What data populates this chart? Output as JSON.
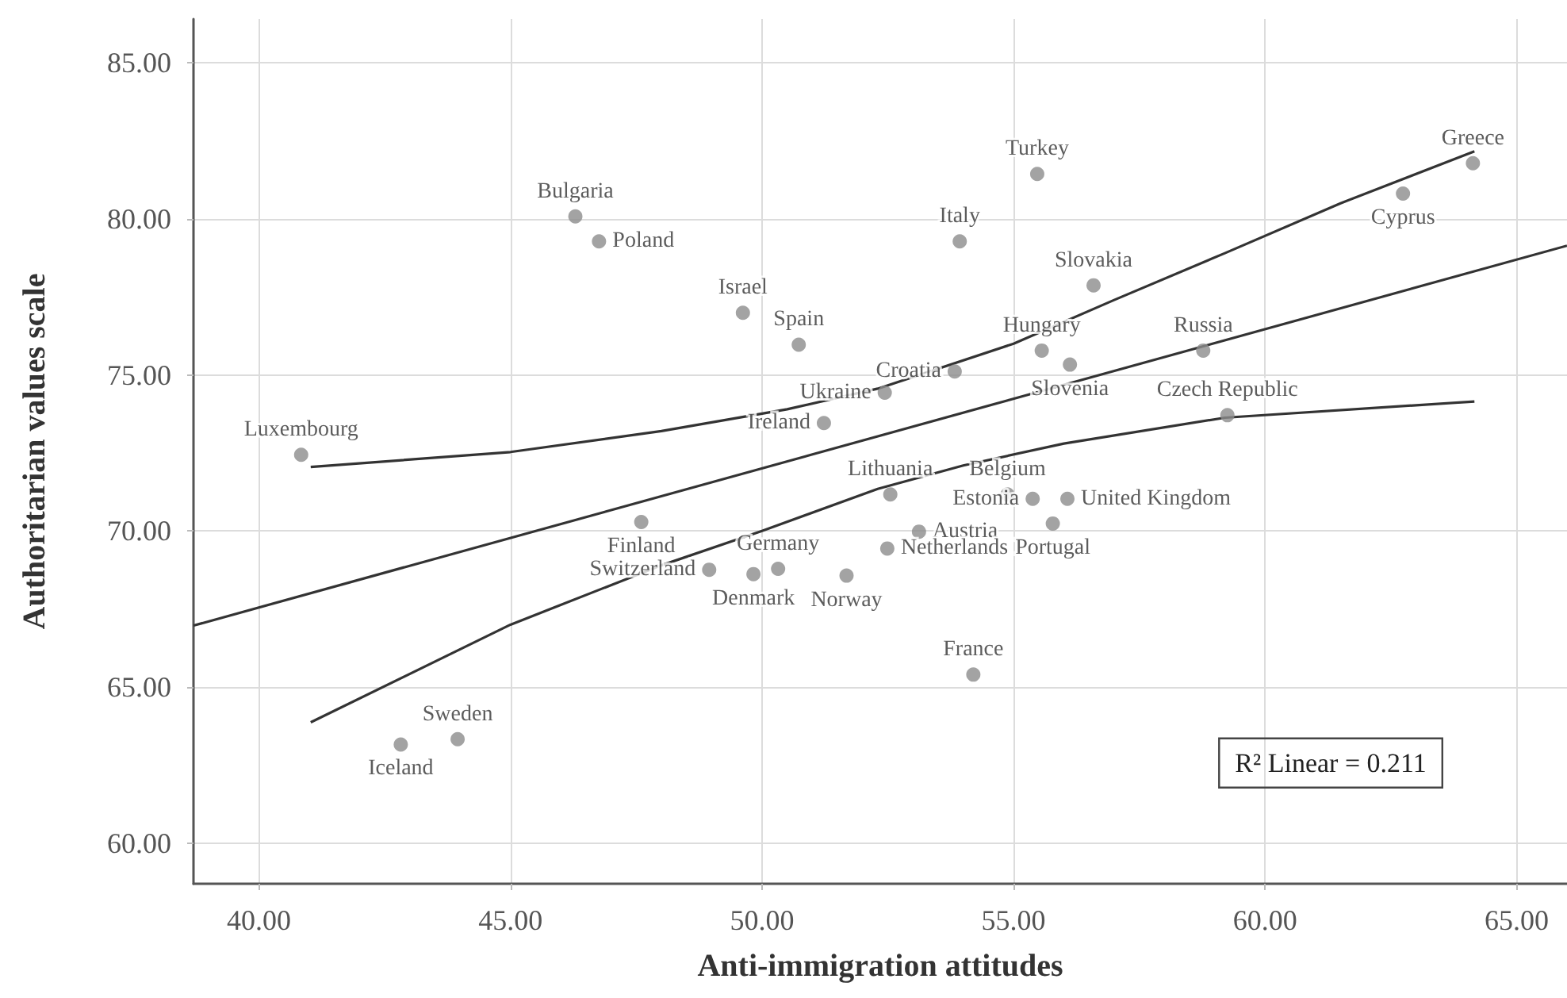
{
  "chart_data": {
    "type": "scatter",
    "xlabel": "Anti-immigration attitudes",
    "ylabel": "Authoritarian values scale",
    "xlim": [
      38.7,
      66
    ],
    "ylim": [
      58.7,
      86.4
    ],
    "xticks": [
      {
        "value": 40,
        "label": "40.00"
      },
      {
        "value": 45,
        "label": "45.00"
      },
      {
        "value": 50,
        "label": "50.00"
      },
      {
        "value": 55,
        "label": "55.00"
      },
      {
        "value": 60,
        "label": "60.00"
      },
      {
        "value": 65,
        "label": "65.00"
      }
    ],
    "yticks": [
      {
        "value": 60,
        "label": "60.00"
      },
      {
        "value": 65,
        "label": "65.00"
      },
      {
        "value": 70,
        "label": "70.00"
      },
      {
        "value": 75,
        "label": "75.00"
      },
      {
        "value": 80,
        "label": "80.00"
      },
      {
        "value": 85,
        "label": "85.00"
      }
    ],
    "grid": true,
    "marker": "circle",
    "annotations": [
      "R² Linear = 0.211"
    ],
    "series": [
      {
        "color": "#8c8c8c",
        "x": [
          40.84,
          46.29,
          46.76,
          49.62,
          50.73,
          51.23,
          52.44,
          53.83,
          53.93,
          55.47,
          55.56,
          56.12,
          56.59,
          58.77,
          59.25,
          62.74,
          64.13,
          47.6,
          48.95,
          49.83,
          50.32,
          51.68,
          42.82,
          43.95,
          52.55,
          53.12,
          52.49,
          54.88,
          55.38,
          56.07,
          55.78,
          54.2
        ],
        "values": [
          72.44,
          80.08,
          79.28,
          76.99,
          75.97,
          73.46,
          74.43,
          75.11,
          79.28,
          81.44,
          75.78,
          75.33,
          77.87,
          75.78,
          73.71,
          80.81,
          81.78,
          70.29,
          68.76,
          68.62,
          68.79,
          68.57,
          63.16,
          63.33,
          71.17,
          69.98,
          69.44,
          71.17,
          71.03,
          71.03,
          70.24,
          65.4
        ],
        "value_labels": [
          "Luxembourg",
          "Bulgaria",
          "Poland",
          "Israel",
          "Spain",
          "Ireland",
          "Ukraine",
          "Croatia",
          "Italy",
          "Turkey",
          "Hungary",
          "Slovenia",
          "Slovakia",
          "Russia",
          "Czech Republic",
          "Cyprus",
          "Greece",
          "Finland",
          "Switzerland",
          "Denmark",
          "Germany",
          "Norway",
          "Iceland",
          "Sweden",
          "Lithuania",
          "Austria",
          "Netherlands",
          "Belgium",
          "Estonia",
          "United Kingdom",
          "Portugal",
          "France"
        ]
      },
      {
        "type": "line",
        "color": "#333333",
        "marker": "none",
        "x": [
          38.7,
          66
        ],
        "values": [
          66.97,
          79.14
        ]
      },
      {
        "type": "line",
        "color": "#333333",
        "marker": "none",
        "x": [
          41.03,
          45,
          48,
          50.5,
          52.3,
          55,
          57,
          59.2,
          61.5,
          64.16
        ],
        "values": [
          72.05,
          72.53,
          73.2,
          73.9,
          74.56,
          76.0,
          77.4,
          78.9,
          80.5,
          82.16
        ]
      },
      {
        "type": "line",
        "color": "#333333",
        "marker": "none",
        "x": [
          41.03,
          45,
          48,
          50,
          52.3,
          54,
          56,
          59.2,
          64.16
        ],
        "values": [
          63.87,
          67.0,
          68.9,
          70.0,
          71.35,
          72.1,
          72.8,
          73.63,
          74.15
        ]
      }
    ]
  }
}
